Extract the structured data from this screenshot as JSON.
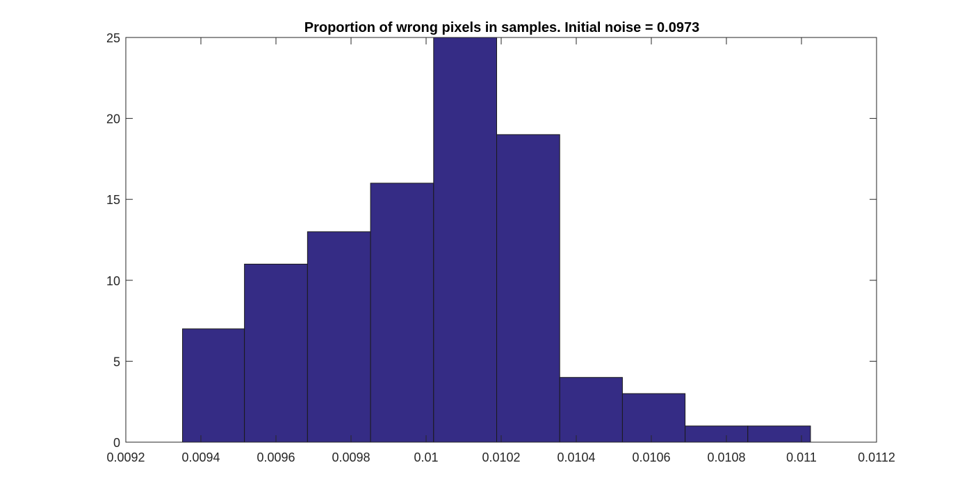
{
  "chart_data": {
    "type": "bar",
    "title": "Proportion of wrong pixels in samples. Initial noise = 0.0973",
    "xlabel": "",
    "ylabel": "",
    "xlim": [
      0.0092,
      0.0112
    ],
    "ylim": [
      0,
      25
    ],
    "x_ticks": [
      0.0092,
      0.0094,
      0.0096,
      0.0098,
      0.01,
      0.0102,
      0.0104,
      0.0106,
      0.0108,
      0.011,
      0.0112
    ],
    "x_tick_labels": [
      "0.0092",
      "0.0094",
      "0.0096",
      "0.0098",
      "0.01",
      "0.0102",
      "0.0104",
      "0.0106",
      "0.0108",
      "0.011",
      "0.0112"
    ],
    "y_ticks": [
      0,
      5,
      10,
      15,
      20,
      25
    ],
    "y_tick_labels": [
      "0",
      "5",
      "10",
      "15",
      "20",
      "25"
    ],
    "bin_edges": [
      0.009351,
      0.009516,
      0.009684,
      0.009852,
      0.01002,
      0.010188,
      0.010356,
      0.010523,
      0.01069,
      0.010857,
      0.011024
    ],
    "values": [
      7,
      11,
      13,
      16,
      25,
      19,
      4,
      3,
      1,
      1
    ],
    "bar_color": "#352c85",
    "grid": false,
    "legend": "none"
  }
}
